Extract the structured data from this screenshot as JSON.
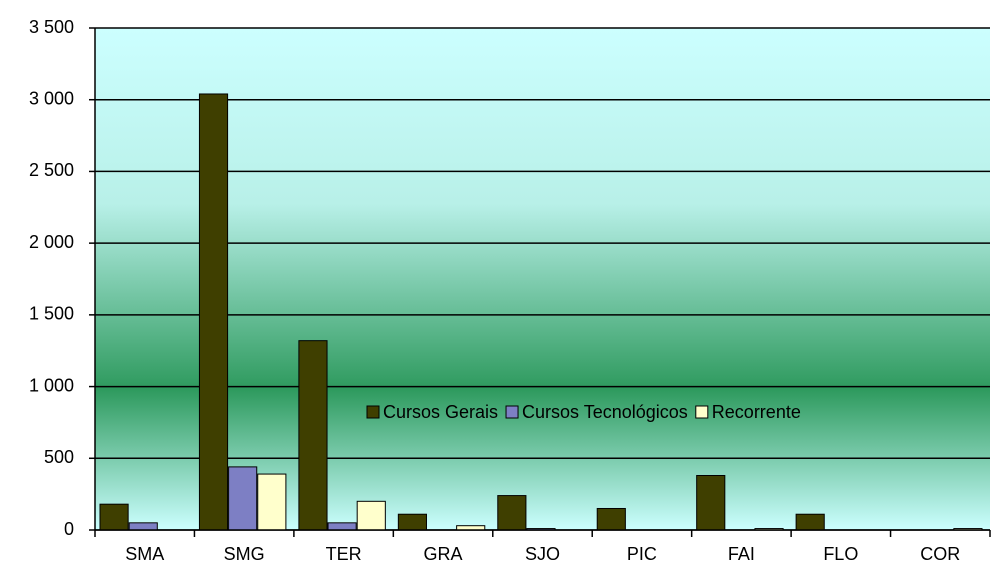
{
  "chart_data": {
    "type": "bar",
    "categories": [
      "SMA",
      "SMG",
      "TER",
      "GRA",
      "SJO",
      "PIC",
      "FAI",
      "FLO",
      "COR"
    ],
    "series": [
      {
        "name": "Cursos Gerais",
        "color": "#3f3f00",
        "values": [
          180,
          3040,
          1320,
          110,
          240,
          150,
          380,
          110,
          0
        ]
      },
      {
        "name": "Cursos Tecnológicos",
        "color": "#7d7fc4",
        "values": [
          50,
          440,
          50,
          0,
          10,
          0,
          0,
          0,
          0
        ]
      },
      {
        "name": "Recorrente",
        "color": "#ffffcc",
        "values": [
          0,
          390,
          200,
          30,
          0,
          0,
          10,
          0,
          10
        ]
      }
    ],
    "ylim": [
      0,
      3500
    ],
    "yticks": [
      0,
      500,
      {
        "value": 1000,
        "label": "1 000"
      },
      {
        "value": 1500,
        "label": "1 500"
      },
      {
        "value": 2000,
        "label": "2 000"
      },
      {
        "value": 2500,
        "label": "2 500"
      },
      {
        "value": 3000,
        "label": "3 000"
      },
      {
        "value": 3500,
        "label": "3 500"
      }
    ],
    "grid": true,
    "legend": "right"
  }
}
